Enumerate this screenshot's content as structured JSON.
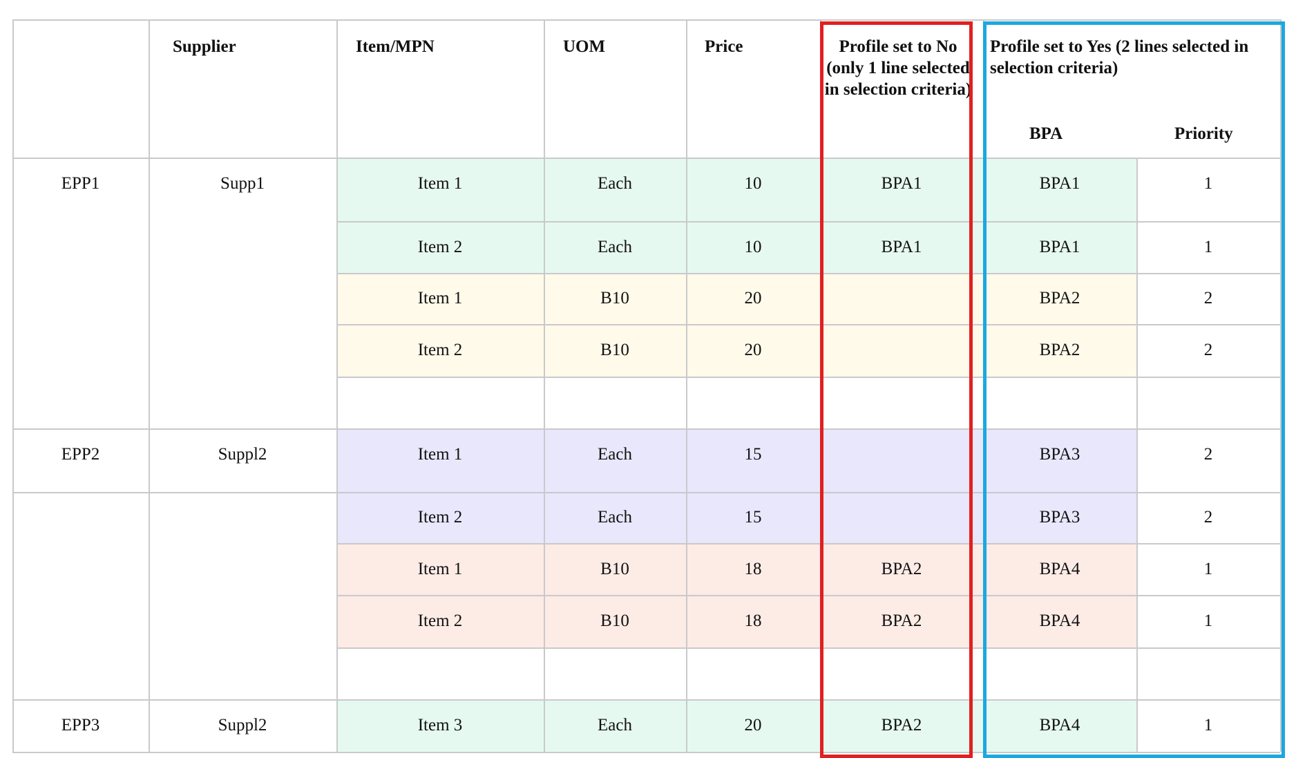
{
  "colors": {
    "green": "#e6f9f0",
    "yellow": "#fffaea",
    "purple": "#e9e7fc",
    "pink": "#fdebe6",
    "red_frame": "#e02020",
    "blue_frame": "#1ba8e0",
    "grid": "#c9c9cc"
  },
  "header": {
    "supplier": "Supplier",
    "item_mpn": "Item/MPN",
    "uom": "UOM",
    "price": "Price",
    "profile_no": "Profile set to No (only 1 line selected in selection criteria)",
    "profile_yes": "Profile set to Yes (2 lines selected in selection criteria)",
    "bpa": "BPA",
    "priority": "Priority"
  },
  "rows": [
    {
      "epp": "EPP1",
      "supplier": "Supp1",
      "item": "Item 1",
      "uom": "Each",
      "price": "10",
      "bpa_no": "BPA1",
      "bpa_yes": "BPA1",
      "priority": "1",
      "color": "green"
    },
    {
      "epp": "",
      "supplier": "",
      "item": "Item 2",
      "uom": "Each",
      "price": "10",
      "bpa_no": "BPA1",
      "bpa_yes": "BPA1",
      "priority": "1",
      "color": "green"
    },
    {
      "epp": "",
      "supplier": "",
      "item": "Item 1",
      "uom": "B10",
      "price": "20",
      "bpa_no": "",
      "bpa_yes": "BPA2",
      "priority": "2",
      "color": "yellow"
    },
    {
      "epp": "",
      "supplier": "",
      "item": "Item 2",
      "uom": "B10",
      "price": "20",
      "bpa_no": "",
      "bpa_yes": "BPA2",
      "priority": "2",
      "color": "yellow"
    },
    {
      "epp": "",
      "supplier": "",
      "item": "",
      "uom": "",
      "price": "",
      "bpa_no": "",
      "bpa_yes": "",
      "priority": "",
      "color": "none"
    },
    {
      "epp": "EPP2",
      "supplier": "Suppl2",
      "item": "Item 1",
      "uom": "Each",
      "price": "15",
      "bpa_no": "",
      "bpa_yes": "BPA3",
      "priority": "2",
      "color": "purple"
    },
    {
      "epp": "",
      "supplier": "",
      "item": "Item 2",
      "uom": "Each",
      "price": "15",
      "bpa_no": "",
      "bpa_yes": "BPA3",
      "priority": "2",
      "color": "purple"
    },
    {
      "epp": "",
      "supplier": "",
      "item": "Item 1",
      "uom": "B10",
      "price": "18",
      "bpa_no": "BPA2",
      "bpa_yes": "BPA4",
      "priority": "1",
      "color": "pink"
    },
    {
      "epp": "",
      "supplier": "",
      "item": "Item 2",
      "uom": "B10",
      "price": "18",
      "bpa_no": "BPA2",
      "bpa_yes": "BPA4",
      "priority": "1",
      "color": "pink"
    },
    {
      "epp": "",
      "supplier": "",
      "item": "",
      "uom": "",
      "price": "",
      "bpa_no": "",
      "bpa_yes": "",
      "priority": "",
      "color": "none"
    },
    {
      "epp": "EPP3",
      "supplier": "Suppl2",
      "item": "Item 3",
      "uom": "Each",
      "price": "20",
      "bpa_no": "BPA2",
      "bpa_yes": "BPA4",
      "priority": "1",
      "color": "green"
    }
  ]
}
